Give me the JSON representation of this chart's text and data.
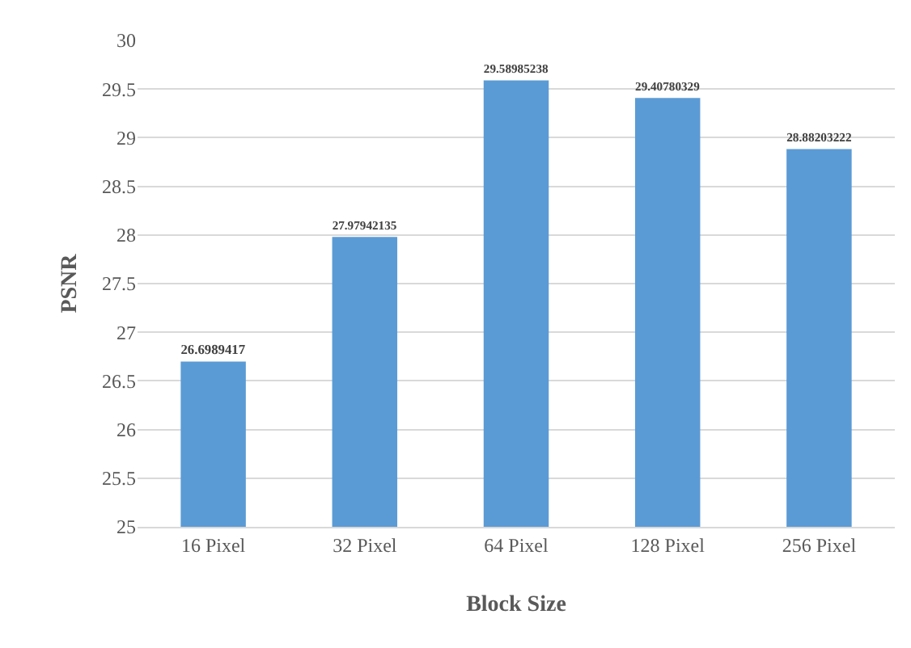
{
  "chart_data": {
    "type": "bar",
    "xlabel": "Block Size",
    "ylabel": "PSNR",
    "categories": [
      "16 Pixel",
      "32 Pixel",
      "64 Pixel",
      "128 Pixel",
      "256 Pixel"
    ],
    "values": [
      26.6989417,
      27.97942135,
      29.58985238,
      29.40780329,
      28.88203222
    ],
    "color": "#5b9bd5",
    "ylim": [
      25,
      30
    ],
    "yticks": [
      25,
      25.5,
      26,
      26.5,
      27,
      27.5,
      28,
      28.5,
      29,
      29.5,
      30
    ],
    "grid": "y",
    "data_labels": true,
    "legend": false
  }
}
